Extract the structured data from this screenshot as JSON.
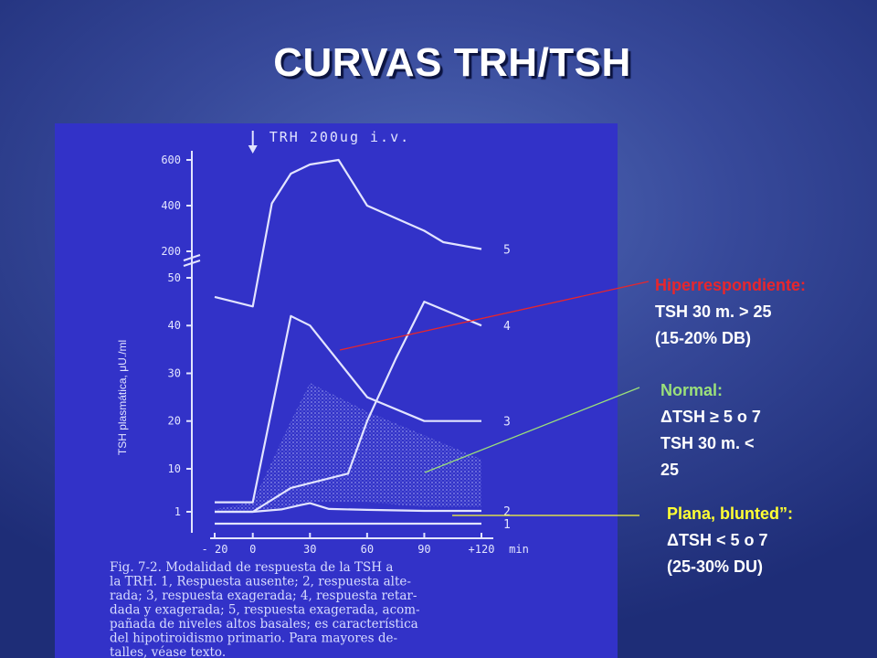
{
  "title": "CURVAS TRH/TSH",
  "colors": {
    "hiper": "#e8262c",
    "normal": "#9be07a",
    "plana": "#ffff33",
    "curve": "#e2e4ff",
    "figure_bg": "#3232c8"
  },
  "callouts": {
    "hiper": {
      "head": "Hiperrespondiente:",
      "lines": [
        "TSH 30 m. > 25",
        "(15-20% DB)"
      ]
    },
    "normal": {
      "head": "Normal:",
      "lines": [
        "ΔTSH ≥ 5 o 7",
        "TSH 30 m. <",
        "25"
      ]
    },
    "plana": {
      "head": "Plana, blunted”:",
      "lines": [
        "ΔTSH < 5 o 7",
        "(25-30% DU)"
      ]
    }
  },
  "chart_data": {
    "type": "line",
    "annotation": "TRH 200ug i.v.",
    "ylabel": "TSH plasmática, μU./ml",
    "xlabel": "min",
    "x_ticks": [
      "- 20",
      "0",
      "30",
      "60",
      "90",
      "+120"
    ],
    "y_ticks": [
      "1",
      "10",
      "20",
      "30",
      "40",
      "50",
      "200",
      "400",
      "600"
    ],
    "series": [
      {
        "name": "1",
        "x": [
          -20,
          0,
          30,
          60,
          90,
          120
        ],
        "y": [
          0,
          0,
          0,
          0,
          0,
          0
        ]
      },
      {
        "name": "2",
        "x": [
          -20,
          0,
          15,
          25,
          30,
          40,
          60,
          90,
          120
        ],
        "y": [
          1,
          1,
          1.5,
          2.4,
          2.8,
          1.6,
          1.4,
          1.2,
          1.2
        ]
      },
      {
        "name": "3",
        "x": [
          -20,
          0,
          20,
          30,
          60,
          90,
          120
        ],
        "y": [
          3,
          3,
          42,
          40,
          25,
          20,
          20
        ]
      },
      {
        "name": "4",
        "x": [
          -20,
          0,
          20,
          30,
          50,
          60,
          75,
          90,
          120
        ],
        "y": [
          1,
          1,
          6,
          7,
          9,
          20,
          33,
          45,
          40
        ]
      },
      {
        "name": "5",
        "x": [
          -20,
          0,
          10,
          20,
          30,
          45,
          60,
          90,
          100,
          120
        ],
        "y": [
          46,
          44,
          410,
          540,
          580,
          600,
          400,
          290,
          240,
          210
        ]
      }
    ],
    "caption": [
      "Fig. 7-2.  Modalidad de respuesta de la TSH a",
      "la TRH. 1, Respuesta ausente; 2, respuesta alte-",
      "rada; 3, respuesta exagerada; 4, respuesta retar-",
      "dada y exagerada; 5, respuesta exagerada, acom-",
      "pañada de niveles altos basales; es característica",
      "del hipotiroidismo primario. Para mayores de-",
      "talles, véase texto."
    ]
  }
}
